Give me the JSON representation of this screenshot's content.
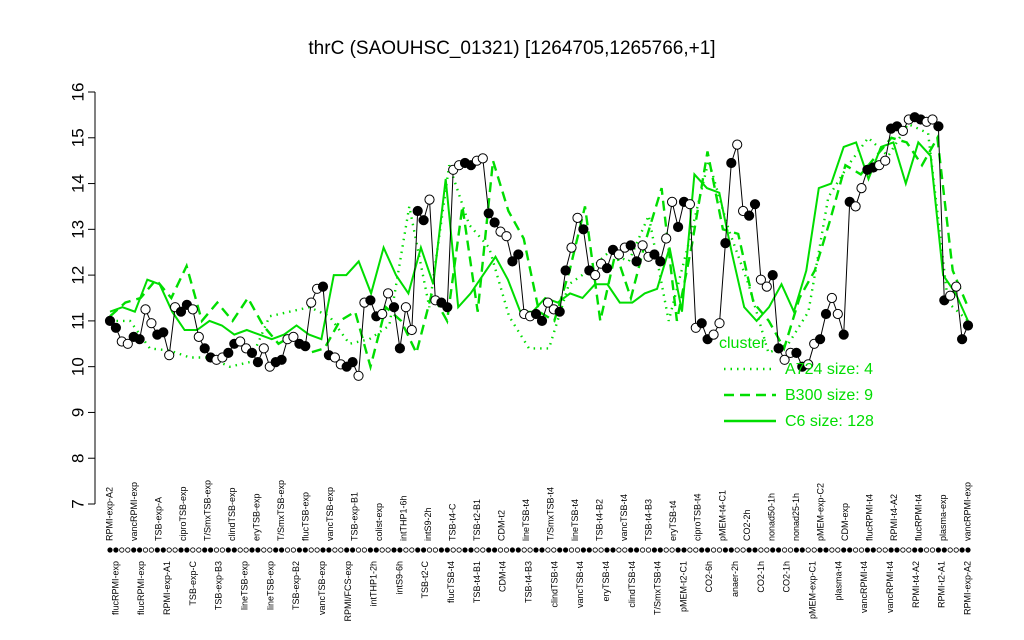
{
  "chart_data": {
    "type": "line",
    "title": "thrC (SAOUHSC_01321) [1264705,1265766,+1]",
    "ylim": [
      7,
      16
    ],
    "yticks": [
      7,
      8,
      9,
      10,
      11,
      12,
      13,
      14,
      15,
      16
    ],
    "grid": false,
    "legend": {
      "position": "right",
      "title": "cluster",
      "entries": [
        {
          "label": "A724 size: 4",
          "style": "dotted",
          "color": "#00dd00"
        },
        {
          "label": "B300 size: 9",
          "style": "dashed",
          "color": "#00dd00"
        },
        {
          "label": "C6 size: 128",
          "style": "solid",
          "color": "#00dd00"
        }
      ]
    },
    "categories_top": [
      "RPMI-exp-A2",
      "vancRPMI-exp",
      "TSB-exp-A",
      "ciproTSB-exp",
      "T/SmxTSB-exp",
      "clindTSB-exp",
      "eryTSB-exp",
      "T/SmxTSB-exp",
      "flucTSB-exp",
      "vancTSB-exp",
      "TSB-exp-B1",
      "colist-exp",
      "intTHP1-6h",
      "intS9-2h",
      "TSB-t4-C",
      "TSB-t2-B1",
      "CDM-t2",
      "lineTSB-t4",
      "T/SmxTSB-t4",
      "lineTSB-t4",
      "TSB-t4-B2",
      "vancTSB-t4",
      "TSB-t4-B3",
      "eryTSB-t4",
      "ciproTSB-t4",
      "pMEM-t4-C1",
      "CO2-2h",
      "nonad50-1h",
      "nonad25-1h",
      "pMEM-exp-C2",
      "CDM-exp",
      "flucRPMI-t4",
      "RPMI-t4-A2",
      "flucRPMI-t4",
      "plasma-exp",
      "vancRPMI-exp"
    ],
    "categories_bottom": [
      "flucRPMI-exp",
      "flucRPMI-exp",
      "RPMI-exp-A1",
      "TSB-exp-C",
      "TSB-exp-B3",
      "lineTSB-exp",
      "lineTSB-exp",
      "TSB-exp-B2",
      "vancTSB-exp",
      "RPMI/FCS-exp",
      "intTHP1-2h",
      "intS9-6h",
      "TSB-t2-C",
      "flucTSB-t4",
      "TSB-t4-B1",
      "CDM-t4",
      "TSB-t4-B3",
      "clindTSB-t4",
      "vancTSB-t4",
      "eryTSB-t4",
      "clindTSB-t4",
      "T/SmxTSB-t4",
      "pMEM-t2-C1",
      "CO2-6h",
      "anaer-2h",
      "CO2-1h",
      "CO2-1h",
      "pMEM-exp-C1",
      "plasma-t4",
      "vancRPMI-t4",
      "vancRPMI-t4",
      "RPMI-t4-A2",
      "RPMI-t2-A1",
      "RPMI-exp-A2"
    ],
    "series": [
      {
        "role": "gene profile (points joined)",
        "values": [
          11.0,
          10.85,
          10.55,
          10.5,
          10.65,
          10.6,
          11.25,
          10.95,
          10.7,
          10.75,
          10.25,
          11.3,
          11.2,
          11.35,
          11.25,
          10.65,
          10.4,
          10.2,
          10.15,
          10.2,
          10.3,
          10.5,
          10.55,
          10.4,
          10.3,
          10.1,
          10.4,
          10.0,
          10.1,
          10.15,
          10.6,
          10.65,
          10.5,
          10.45,
          11.4,
          11.7,
          11.75,
          10.25,
          10.2,
          10.05,
          10.0,
          10.1,
          9.8,
          11.4,
          11.45,
          11.1,
          11.15,
          11.6,
          11.3,
          10.4,
          11.3,
          10.8,
          13.4,
          13.2,
          13.65,
          11.45,
          11.4,
          11.3,
          14.3,
          14.4,
          14.45,
          14.4,
          14.5,
          14.55,
          13.35,
          13.15,
          12.95,
          12.85,
          12.3,
          12.45,
          11.15,
          11.1,
          11.15,
          11.0,
          11.4,
          11.25,
          11.2,
          12.1,
          12.6,
          13.25,
          13.0,
          12.1,
          12.0,
          12.25,
          12.15,
          12.55,
          12.45,
          12.6,
          12.65,
          12.3,
          12.65,
          12.4,
          12.45,
          12.3,
          12.8,
          13.6,
          13.05,
          13.6,
          13.55,
          10.85,
          10.95,
          10.6,
          10.7,
          10.95,
          12.7,
          14.45,
          14.85,
          13.4,
          13.3,
          13.55,
          11.9,
          11.75,
          12.0,
          10.4,
          10.15,
          10.3,
          10.3,
          10.0,
          10.05,
          10.5,
          10.6,
          11.15,
          11.5,
          11.15,
          10.7,
          13.6,
          13.5,
          13.9,
          14.3,
          14.35,
          14.4,
          14.5,
          15.2,
          15.25,
          15.15,
          15.4,
          15.45,
          15.4,
          15.35,
          15.4,
          15.25,
          11.45,
          11.55,
          11.75,
          10.6,
          10.9
        ]
      },
      {
        "name": "A724 size: 4",
        "style": "dotted",
        "values": [
          11.0,
          11.0,
          10.4,
          10.35,
          10.2,
          10.2,
          10.0,
          10.1,
          11.1,
          11.2,
          11.3,
          11.1,
          10.5,
          10.6,
          10.9,
          13.5,
          11.3,
          14.4,
          13.1,
          12.6,
          11.1,
          10.4,
          10.4,
          11.8,
          12.1,
          12.5,
          12.3,
          13.3,
          11.0,
          12.7,
          14.5,
          13.0,
          11.8,
          10.3,
          10.5,
          11.2,
          13.7,
          14.4,
          15.0,
          14.6,
          15.3,
          15.1,
          11.4,
          11.0
        ]
      },
      {
        "name": "B300 size: 9",
        "style": "dashed",
        "values": [
          11.1,
          11.4,
          11.5,
          11.9,
          11.5,
          12.2,
          11.0,
          11.4,
          11.0,
          11.5,
          10.9,
          10.5,
          10.7,
          10.3,
          10.4,
          11.0,
          11.2,
          10.0,
          11.3,
          11.0,
          10.3,
          11.6,
          11.0,
          13.5,
          11.2,
          14.5,
          13.4,
          12.8,
          11.2,
          11.0,
          12.1,
          13.5,
          11.0,
          12.5,
          11.5,
          12.8,
          13.9,
          11.0,
          12.7,
          14.7,
          13.0,
          12.9,
          11.4,
          11.0,
          10.4,
          11.5,
          12.1,
          13.2,
          14.4,
          14.2,
          14.6,
          15.0,
          14.9,
          14.4,
          15.0,
          12.1,
          11.3
        ]
      },
      {
        "name": "C6 size: 128",
        "style": "solid",
        "values": [
          11.2,
          11.3,
          11.2,
          11.9,
          11.8,
          11.2,
          10.8,
          10.8,
          11.0,
          10.9,
          10.7,
          10.8,
          10.7,
          10.6,
          10.7,
          10.9,
          10.7,
          10.6,
          12.0,
          12.0,
          12.3,
          11.6,
          12.6,
          12.0,
          11.6,
          12.6,
          11.8,
          14.1,
          11.3,
          11.6,
          12.0,
          12.4,
          11.9,
          11.2,
          11.2,
          11.5,
          11.4,
          11.6,
          11.5,
          11.8,
          11.8,
          11.4,
          11.4,
          11.6,
          11.7,
          12.6,
          11.2,
          14.2,
          13.9,
          13.8,
          12.5,
          11.3,
          11.0,
          11.3,
          11.8,
          11.2,
          12.1,
          13.9,
          14.0,
          14.8,
          14.9,
          14.1,
          14.8,
          14.9,
          14.0,
          14.9,
          14.6,
          12.0,
          11.6,
          11.0
        ]
      }
    ]
  }
}
